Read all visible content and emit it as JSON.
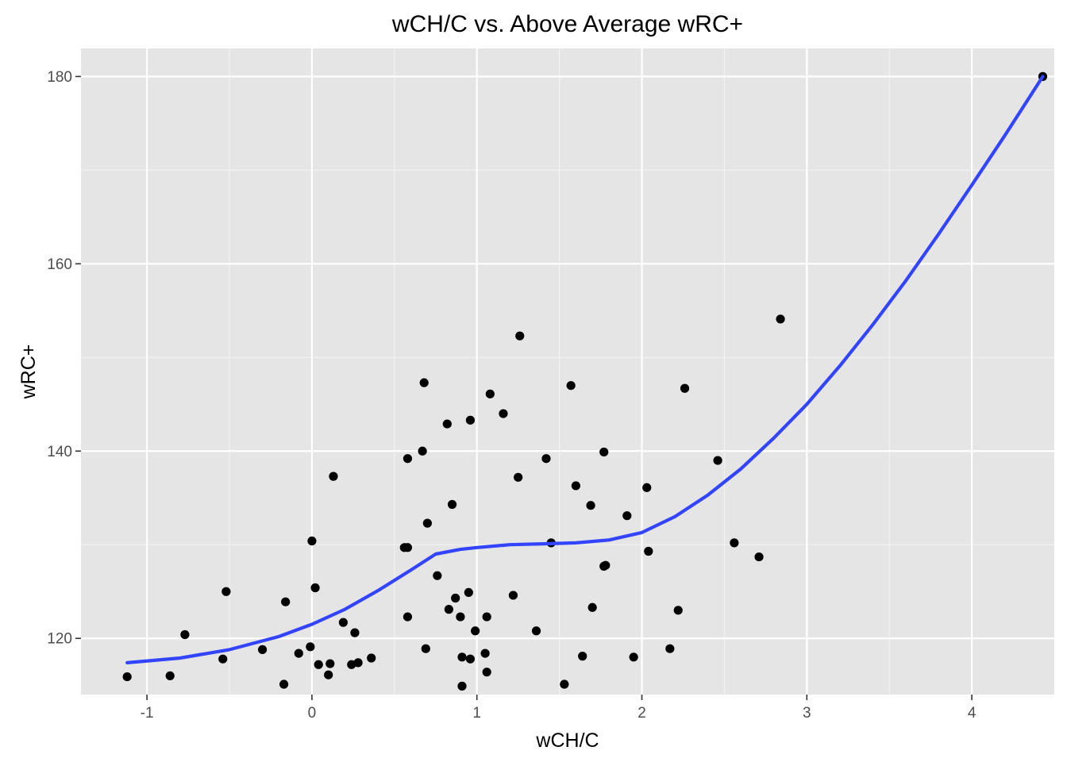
{
  "colors": {
    "panel_background": "#e5e5e5",
    "grid_major": "#ffffff",
    "grid_minor": "#f2f2f2",
    "point": "#000000",
    "smooth_line": "#3344ff",
    "tick": "#333333"
  },
  "chart_data": {
    "type": "scatter",
    "title": "wCH/C vs. Above Average wRC+",
    "xlabel": "wCH/C",
    "ylabel": "wRC+",
    "xlim": [
      -1.4,
      4.5
    ],
    "ylim": [
      114,
      183
    ],
    "x_ticks": [
      -1,
      0,
      1,
      2,
      3,
      4
    ],
    "x_tick_labels": [
      "-1",
      "0",
      "1",
      "2",
      "3",
      "4"
    ],
    "y_ticks": [
      120,
      140,
      160,
      180
    ],
    "y_tick_labels": [
      "120",
      "140",
      "160",
      "180"
    ],
    "grid": true,
    "legend": "none",
    "points": [
      {
        "x": -1.12,
        "y": 115.9
      },
      {
        "x": -0.86,
        "y": 116.0
      },
      {
        "x": -0.77,
        "y": 120.4
      },
      {
        "x": -0.54,
        "y": 117.8
      },
      {
        "x": -0.52,
        "y": 125.0
      },
      {
        "x": -0.3,
        "y": 118.8
      },
      {
        "x": -0.17,
        "y": 115.1
      },
      {
        "x": -0.16,
        "y": 123.9
      },
      {
        "x": -0.08,
        "y": 118.4
      },
      {
        "x": -0.01,
        "y": 119.1
      },
      {
        "x": 0.0,
        "y": 130.4
      },
      {
        "x": 0.02,
        "y": 125.4
      },
      {
        "x": 0.04,
        "y": 117.2
      },
      {
        "x": 0.1,
        "y": 116.1
      },
      {
        "x": 0.11,
        "y": 117.3
      },
      {
        "x": 0.13,
        "y": 137.3
      },
      {
        "x": 0.19,
        "y": 121.7
      },
      {
        "x": 0.24,
        "y": 117.2
      },
      {
        "x": 0.26,
        "y": 120.6
      },
      {
        "x": 0.28,
        "y": 117.4
      },
      {
        "x": 0.36,
        "y": 117.9
      },
      {
        "x": 0.56,
        "y": 129.7
      },
      {
        "x": 0.58,
        "y": 129.7
      },
      {
        "x": 0.58,
        "y": 122.3
      },
      {
        "x": 0.58,
        "y": 139.2
      },
      {
        "x": 0.67,
        "y": 140.0
      },
      {
        "x": 0.68,
        "y": 147.3
      },
      {
        "x": 0.69,
        "y": 118.9
      },
      {
        "x": 0.7,
        "y": 132.3
      },
      {
        "x": 0.76,
        "y": 126.7
      },
      {
        "x": 0.82,
        "y": 142.9
      },
      {
        "x": 0.83,
        "y": 123.1
      },
      {
        "x": 0.85,
        "y": 134.3
      },
      {
        "x": 0.87,
        "y": 124.3
      },
      {
        "x": 0.9,
        "y": 122.3
      },
      {
        "x": 0.91,
        "y": 118.0
      },
      {
        "x": 0.91,
        "y": 114.9
      },
      {
        "x": 0.95,
        "y": 124.9
      },
      {
        "x": 0.96,
        "y": 117.8
      },
      {
        "x": 0.96,
        "y": 143.3
      },
      {
        "x": 0.99,
        "y": 120.8
      },
      {
        "x": 1.05,
        "y": 118.4
      },
      {
        "x": 1.06,
        "y": 122.3
      },
      {
        "x": 1.06,
        "y": 116.4
      },
      {
        "x": 1.08,
        "y": 146.1
      },
      {
        "x": 1.16,
        "y": 144.0
      },
      {
        "x": 1.22,
        "y": 124.6
      },
      {
        "x": 1.25,
        "y": 137.2
      },
      {
        "x": 1.26,
        "y": 152.3
      },
      {
        "x": 1.36,
        "y": 120.8
      },
      {
        "x": 1.42,
        "y": 139.2
      },
      {
        "x": 1.45,
        "y": 130.2
      },
      {
        "x": 1.53,
        "y": 115.1
      },
      {
        "x": 1.57,
        "y": 147.0
      },
      {
        "x": 1.6,
        "y": 136.3
      },
      {
        "x": 1.64,
        "y": 118.1
      },
      {
        "x": 1.69,
        "y": 134.2
      },
      {
        "x": 1.7,
        "y": 123.3
      },
      {
        "x": 1.77,
        "y": 139.9
      },
      {
        "x": 1.77,
        "y": 127.7
      },
      {
        "x": 1.78,
        "y": 127.8
      },
      {
        "x": 1.91,
        "y": 133.1
      },
      {
        "x": 1.95,
        "y": 118.0
      },
      {
        "x": 2.03,
        "y": 136.1
      },
      {
        "x": 2.04,
        "y": 129.3
      },
      {
        "x": 2.17,
        "y": 118.9
      },
      {
        "x": 2.22,
        "y": 123.0
      },
      {
        "x": 2.26,
        "y": 146.7
      },
      {
        "x": 2.46,
        "y": 139.0
      },
      {
        "x": 2.56,
        "y": 130.2
      },
      {
        "x": 2.71,
        "y": 128.7
      },
      {
        "x": 2.84,
        "y": 154.1
      },
      {
        "x": 4.43,
        "y": 180.0
      }
    ],
    "smooth": {
      "type": "loess",
      "x": [
        -1.12,
        -0.8,
        -0.5,
        -0.2,
        0.0,
        0.2,
        0.4,
        0.6,
        0.75,
        0.9,
        1.0,
        1.2,
        1.4,
        1.6,
        1.8,
        2.0,
        2.2,
        2.4,
        2.6,
        2.8,
        3.0,
        3.2,
        3.4,
        3.6,
        3.8,
        4.0,
        4.2,
        4.43
      ],
      "y": [
        117.4,
        117.9,
        118.8,
        120.2,
        121.5,
        123.1,
        125.1,
        127.3,
        129.0,
        129.5,
        129.7,
        130.0,
        130.1,
        130.2,
        130.5,
        131.3,
        133.0,
        135.3,
        138.1,
        141.4,
        145.0,
        149.1,
        153.5,
        158.2,
        163.2,
        168.4,
        173.7,
        180.0
      ]
    }
  }
}
